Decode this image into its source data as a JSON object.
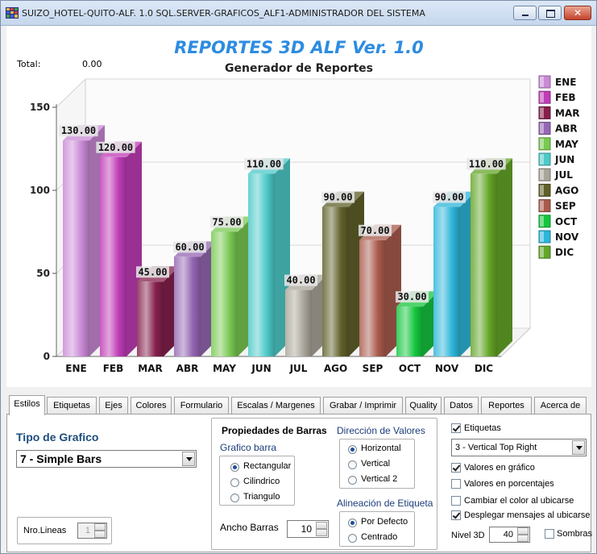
{
  "window": {
    "title": "SUIZO_HOTEL-QUITO-ALF. 1.0 SQL.SERVER-GRAFICOS_ALF1-ADMINISTRADOR DEL SISTEMA",
    "icon": "app-grid-icon"
  },
  "chart_header": {
    "app_title": "REPORTES 3D ALF Ver. 1.0",
    "total_label": "Total:",
    "total_value": "0.00"
  },
  "chart_data": {
    "type": "bar",
    "title": "Generador de Reportes",
    "categories": [
      "ENE",
      "FEB",
      "MAR",
      "ABR",
      "MAY",
      "JUN",
      "JUL",
      "AGO",
      "SEP",
      "OCT",
      "NOV",
      "DIC"
    ],
    "values": [
      130,
      120,
      45,
      60,
      75,
      110,
      40,
      90,
      70,
      30,
      90,
      110
    ],
    "value_labels": [
      "130.00",
      "120.00",
      "45.00",
      "60.00",
      "75.00",
      "110.00",
      "40.00",
      "90.00",
      "70.00",
      "30.00",
      "90.00",
      "110.00"
    ],
    "colors": [
      "#c98ad6",
      "#c03cb6",
      "#85204c",
      "#9566b3",
      "#79c952",
      "#4ccac8",
      "#aaa59a",
      "#60602a",
      "#a95b4d",
      "#14c63e",
      "#2db6da",
      "#64a628"
    ],
    "yticks": [
      0,
      50,
      100,
      150
    ],
    "ylim": [
      0,
      150
    ],
    "grid": true,
    "legend_position": "right",
    "style": "3D"
  },
  "tabs": [
    "Estilos",
    "Etiquetas",
    "Ejes",
    "Colores",
    "Formulario",
    "Escalas / Margenes",
    "Grabar / Imprimir",
    "Quality",
    "Datos",
    "Reportes",
    "Acerca de"
  ],
  "estilos": {
    "tipo_label": "Tipo de Grafico",
    "tipo_value": "7 - Simple Bars",
    "nro_lineas_label": "Nro.Lineas",
    "nro_lineas_value": "1",
    "propiedades_title": "Propiedades de Barras",
    "grafico_barra_label": "Grafico barra",
    "grafico_barra_options": [
      "Rectangular",
      "Cilindrico",
      "Triangulo"
    ],
    "ancho_label": "Ancho Barras",
    "ancho_value": "10",
    "direccion_label": "Dirección de Valores",
    "direccion_options": [
      "Horizontal",
      "Vertical",
      "Vertical 2"
    ],
    "alineacion_label": "Alineación de Etiqueta",
    "alineacion_options": [
      "Por Defecto",
      "Centrado"
    ],
    "etiquetas_label": "Etiquetas",
    "etiquetas_combo": "3 - Vertical Top Right",
    "valores_grafico": "Valores en gráfico",
    "valores_porcentajes": "Valores en porcentajes",
    "cambiar_color": "Cambiar el color al ubicarse",
    "desplegar_mensajes": "Desplegar mensajes al ubicarse",
    "nivel3d_label": "Nivel 3D",
    "nivel3d_value": "40",
    "sombras_label": "Sombras"
  }
}
